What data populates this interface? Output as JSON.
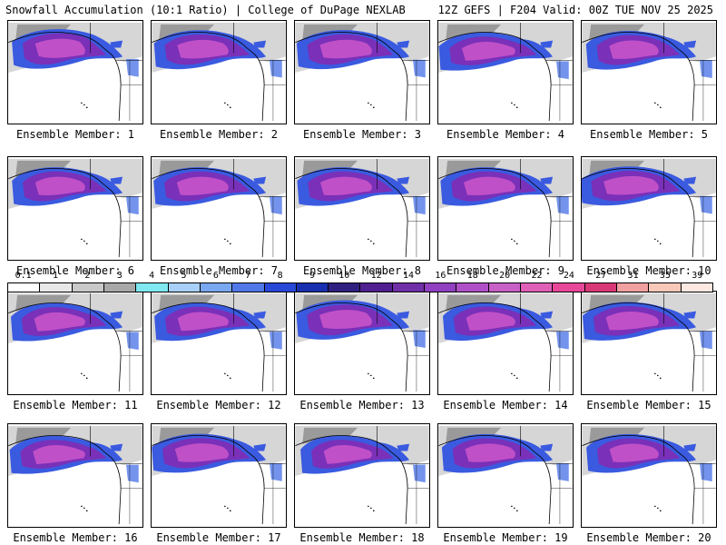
{
  "header": {
    "title_left": "Snowfall Accumulation (10:1 Ratio) | College of DuPage NEXLAB",
    "title_right": "12Z GEFS | F204 Valid: 00Z TUE NOV 25 2025"
  },
  "panels": [
    {
      "caption": "Ensemble Member: 1"
    },
    {
      "caption": "Ensemble Member: 2"
    },
    {
      "caption": "Ensemble Member: 3"
    },
    {
      "caption": "Ensemble Member: 4"
    },
    {
      "caption": "Ensemble Member: 5"
    },
    {
      "caption": "Ensemble Member: 6"
    },
    {
      "caption": "Ensemble Member: 7"
    },
    {
      "caption": "Ensemble Member: 8"
    },
    {
      "caption": "Ensemble Member: 9"
    },
    {
      "caption": "Ensemble Member: 10"
    },
    {
      "caption": "Ensemble Member: 11"
    },
    {
      "caption": "Ensemble Member: 12"
    },
    {
      "caption": "Ensemble Member: 13"
    },
    {
      "caption": "Ensemble Member: 14"
    },
    {
      "caption": "Ensemble Member: 15"
    },
    {
      "caption": "Ensemble Member: 16"
    },
    {
      "caption": "Ensemble Member: 17"
    },
    {
      "caption": "Ensemble Member: 18"
    },
    {
      "caption": "Ensemble Member: 19"
    },
    {
      "caption": "Ensemble Member: 20"
    }
  ],
  "colorbar": {
    "labels": [
      "0.1",
      "1",
      "2",
      "3",
      "4",
      "5",
      "6",
      "7",
      "8",
      "9",
      "10",
      "12",
      "14",
      "16",
      "18",
      "20",
      "22",
      "24",
      "27",
      "31",
      "35",
      "39"
    ],
    "colors": [
      "#ffffff",
      "#e8e8e8",
      "#c8c8c8",
      "#a8a8a8",
      "#7fe8f0",
      "#a8d0f8",
      "#7aa8f0",
      "#5078e8",
      "#2848d8",
      "#1830b0",
      "#302080",
      "#502090",
      "#7030a8",
      "#9040c0",
      "#b050c8",
      "#c860c8",
      "#e060b8",
      "#e84898",
      "#d83878",
      "#f0a0a0",
      "#f8c8b8",
      "#fce8e0"
    ]
  }
}
